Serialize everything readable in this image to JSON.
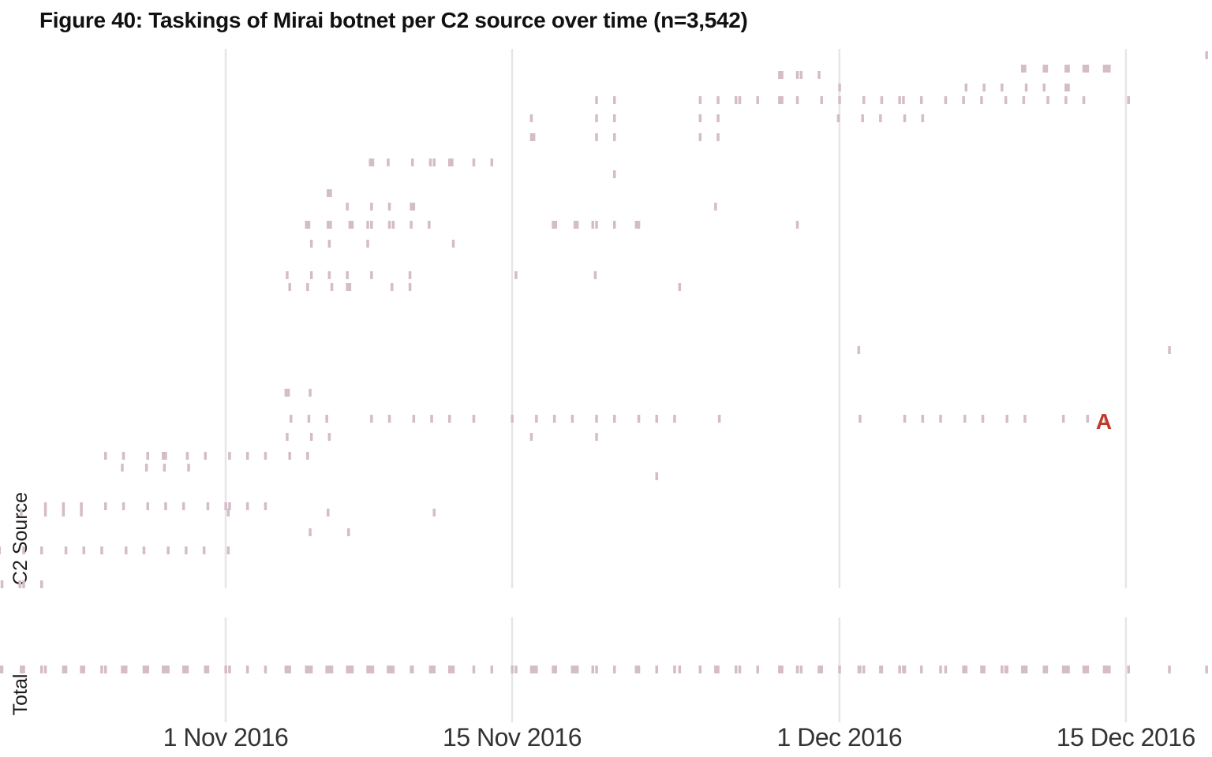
{
  "chart_data": {
    "type": "scatter",
    "title": "Figure 40: Taskings of Mirai botnet per C2 source over time (n=3,542)",
    "ylabel": "C2 Source",
    "total_label": "Total",
    "x_range": [
      "2016-10-21",
      "2016-12-19"
    ],
    "x_ticks": [
      {
        "date": "2016-11-01",
        "label": "1 Nov 2016"
      },
      {
        "date": "2016-11-15",
        "label": "15 Nov 2016"
      },
      {
        "date": "2016-12-01",
        "label": "1 Dec 2016"
      },
      {
        "date": "2016-12-15",
        "label": "15 Dec 2016"
      }
    ],
    "grid": true,
    "mark_color": "#d4bcc8",
    "annotation": {
      "text": "A",
      "date": "2016-12-14",
      "row_y": 533,
      "color": "#c0392b"
    },
    "sources": [
      {
        "y": 70,
        "dates": [
          "2016-12-19"
        ]
      },
      {
        "y": 87,
        "dates": [
          "2016-12-10",
          "2016-12-10",
          "2016-12-11",
          "2016-12-11",
          "2016-12-12",
          "2016-12-12",
          "2016-12-13",
          "2016-12-13",
          "2016-12-13",
          "2016-12-14",
          "2016-12-14",
          "2016-12-14"
        ]
      },
      {
        "y": 95,
        "dates": [
          "2016-11-28",
          "2016-11-28",
          "2016-11-29",
          "2016-11-29",
          "2016-11-30"
        ]
      },
      {
        "y": 111,
        "dates": [
          "2016-12-01",
          "2016-12-07",
          "2016-12-08",
          "2016-12-09",
          "2016-12-10",
          "2016-12-11",
          "2016-12-12",
          "2016-12-12"
        ]
      },
      {
        "y": 127,
        "dates": [
          "2016-11-19",
          "2016-11-20",
          "2016-11-24",
          "2016-11-25",
          "2016-11-26",
          "2016-11-26",
          "2016-11-27",
          "2016-11-28",
          "2016-11-28",
          "2016-11-29",
          "2016-11-30",
          "2016-12-01",
          "2016-12-02",
          "2016-12-03",
          "2016-12-04",
          "2016-12-04",
          "2016-12-05",
          "2016-12-06",
          "2016-12-07",
          "2016-12-08",
          "2016-12-09",
          "2016-12-10",
          "2016-12-11",
          "2016-12-12",
          "2016-12-13",
          "2016-12-15"
        ]
      },
      {
        "y": 150,
        "dates": [
          "2016-11-16",
          "2016-11-19",
          "2016-11-20",
          "2016-11-24",
          "2016-11-25",
          "2016-12-01",
          "2016-12-02",
          "2016-12-03",
          "2016-12-04",
          "2016-12-05"
        ]
      },
      {
        "y": 174,
        "dates": [
          "2016-11-16",
          "2016-11-16",
          "2016-11-19",
          "2016-11-20",
          "2016-11-24",
          "2016-11-25"
        ]
      },
      {
        "y": 206,
        "dates": [
          "2016-11-08",
          "2016-11-08",
          "2016-11-09",
          "2016-11-10",
          "2016-11-11",
          "2016-11-11",
          "2016-11-12",
          "2016-11-12",
          "2016-11-13",
          "2016-11-14"
        ]
      },
      {
        "y": 221,
        "dates": [
          "2016-11-20"
        ]
      },
      {
        "y": 245,
        "dates": [
          "2016-11-06",
          "2016-11-06"
        ]
      },
      {
        "y": 262,
        "dates": [
          "2016-11-07",
          "2016-11-08",
          "2016-11-09",
          "2016-11-10",
          "2016-11-10",
          "2016-11-25"
        ]
      },
      {
        "y": 285,
        "dates": [
          "2016-11-05",
          "2016-11-05",
          "2016-11-06",
          "2016-11-06",
          "2016-11-07",
          "2016-11-07",
          "2016-11-08",
          "2016-11-08",
          "2016-11-09",
          "2016-11-09",
          "2016-11-10",
          "2016-11-11",
          "2016-11-17",
          "2016-11-17",
          "2016-11-18",
          "2016-11-18",
          "2016-11-19",
          "2016-11-19",
          "2016-11-20",
          "2016-11-21",
          "2016-11-21",
          "2016-11-29"
        ]
      },
      {
        "y": 309,
        "dates": [
          "2016-11-05",
          "2016-11-06",
          "2016-11-08",
          "2016-11-12"
        ]
      },
      {
        "y": 349,
        "dates": [
          "2016-11-04",
          "2016-11-05",
          "2016-11-06",
          "2016-11-07",
          "2016-11-08",
          "2016-11-10",
          "2016-11-15",
          "2016-11-19"
        ]
      },
      {
        "y": 364,
        "dates": [
          "2016-11-04",
          "2016-11-05",
          "2016-11-06",
          "2016-11-07",
          "2016-11-07",
          "2016-11-09",
          "2016-11-10",
          "2016-11-23"
        ]
      },
      {
        "y": 444,
        "dates": [
          "2016-12-02",
          "2016-12-17"
        ]
      },
      {
        "y": 498,
        "dates": [
          "2016-11-04",
          "2016-11-04",
          "2016-11-05"
        ]
      },
      {
        "y": 531,
        "dates": [
          "2016-11-04",
          "2016-11-05",
          "2016-11-06",
          "2016-11-08",
          "2016-11-09",
          "2016-11-10",
          "2016-11-11",
          "2016-11-12",
          "2016-11-13",
          "2016-11-15",
          "2016-11-16",
          "2016-11-17",
          "2016-11-18",
          "2016-11-19",
          "2016-11-20",
          "2016-11-21",
          "2016-11-22",
          "2016-11-23",
          "2016-11-25",
          "2016-12-02",
          "2016-12-04",
          "2016-12-05",
          "2016-12-06",
          "2016-12-07",
          "2016-12-08",
          "2016-12-09",
          "2016-12-10",
          "2016-12-12",
          "2016-12-13",
          "2016-12-14"
        ]
      },
      {
        "y": 554,
        "dates": [
          "2016-11-04",
          "2016-11-05",
          "2016-11-06",
          "2016-11-16",
          "2016-11-19"
        ]
      },
      {
        "y": 578,
        "dates": [
          "2016-10-26",
          "2016-10-27",
          "2016-10-28",
          "2016-10-29",
          "2016-10-29",
          "2016-10-30",
          "2016-10-31",
          "2016-11-01",
          "2016-11-02",
          "2016-11-03",
          "2016-11-04",
          "2016-11-05"
        ]
      },
      {
        "y": 593,
        "dates": [
          "2016-10-27",
          "2016-10-28",
          "2016-10-29",
          "2016-10-30"
        ]
      },
      {
        "y": 604,
        "dates": [
          "2016-11-22"
        ]
      },
      {
        "y": 642,
        "dates": [
          "2016-10-23",
          "2016-10-24",
          "2016-10-25",
          "2016-10-26",
          "2016-10-27",
          "2016-10-28",
          "2016-10-29",
          "2016-10-30",
          "2016-10-31",
          "2016-11-01",
          "2016-11-01",
          "2016-11-02",
          "2016-11-03"
        ]
      },
      {
        "y": 650,
        "dates": [
          "2016-10-22",
          "2016-10-23",
          "2016-10-24",
          "2016-10-25",
          "2016-11-01",
          "2016-11-06",
          "2016-11-11"
        ]
      },
      {
        "y": 675,
        "dates": [
          "2016-11-05",
          "2016-11-07"
        ]
      },
      {
        "y": 698,
        "dates": [
          "2016-10-21",
          "2016-10-22",
          "2016-10-23",
          "2016-10-24",
          "2016-10-25",
          "2016-10-26",
          "2016-10-27",
          "2016-10-28",
          "2016-10-29",
          "2016-10-30",
          "2016-10-31",
          "2016-11-01"
        ]
      },
      {
        "y": 741,
        "dates": [
          "2016-10-21",
          "2016-10-22",
          "2016-10-22",
          "2016-10-23"
        ]
      }
    ]
  }
}
